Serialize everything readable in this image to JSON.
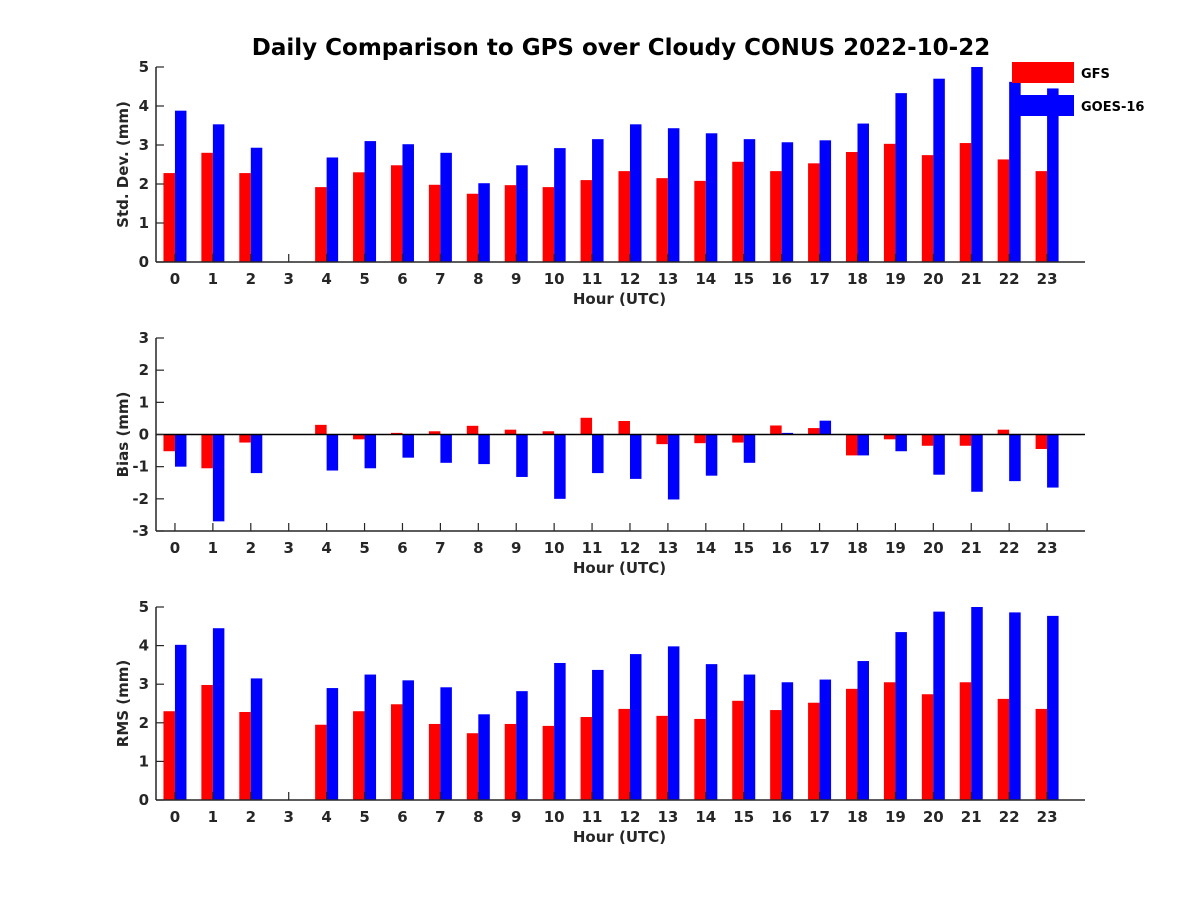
{
  "colors": {
    "GFS": "#ff0000",
    "GOES-16": "#0000ff",
    "axis": "#262626"
  },
  "chart_data": [
    {
      "type": "bar",
      "title": "Daily Comparison to GPS over Cloudy CONUS 2022-10-22",
      "xlabel": "Hour (UTC)",
      "ylabel": "Std. Dev. (mm)",
      "ylim": [
        0,
        5
      ],
      "yticks": [
        "0",
        "1",
        "2",
        "3",
        "4",
        "5"
      ],
      "categories": [
        "0",
        "1",
        "2",
        "3",
        "4",
        "5",
        "6",
        "7",
        "8",
        "9",
        "10",
        "11",
        "12",
        "13",
        "14",
        "15",
        "16",
        "17",
        "18",
        "19",
        "20",
        "21",
        "22",
        "23"
      ],
      "legend": {
        "position": "top-right",
        "entries": [
          "GFS",
          "GOES-16"
        ]
      },
      "series": [
        {
          "name": "GFS",
          "values": [
            2.28,
            2.8,
            2.28,
            null,
            1.92,
            2.3,
            2.48,
            1.98,
            1.75,
            1.97,
            1.92,
            2.1,
            2.33,
            2.15,
            2.08,
            2.57,
            2.33,
            2.53,
            2.82,
            3.03,
            2.74,
            3.05,
            2.63,
            2.33
          ]
        },
        {
          "name": "GOES-16",
          "values": [
            3.88,
            3.53,
            2.93,
            null,
            2.68,
            3.1,
            3.02,
            2.8,
            2.02,
            2.48,
            2.92,
            3.15,
            3.53,
            3.43,
            3.3,
            3.15,
            3.07,
            3.12,
            3.55,
            4.33,
            4.7,
            5.0,
            4.62,
            4.45
          ]
        }
      ]
    },
    {
      "type": "bar",
      "xlabel": "Hour (UTC)",
      "ylabel": "Bias (mm)",
      "ylim": [
        -3,
        3
      ],
      "yticks": [
        "-3",
        "-2",
        "-1",
        "0",
        "1",
        "2",
        "3"
      ],
      "categories": [
        "0",
        "1",
        "2",
        "3",
        "4",
        "5",
        "6",
        "7",
        "8",
        "9",
        "10",
        "11",
        "12",
        "13",
        "14",
        "15",
        "16",
        "17",
        "18",
        "19",
        "20",
        "21",
        "22",
        "23"
      ],
      "series": [
        {
          "name": "GFS",
          "values": [
            -0.52,
            -1.05,
            -0.25,
            null,
            0.3,
            -0.15,
            0.05,
            0.1,
            0.27,
            0.15,
            0.1,
            0.52,
            0.42,
            -0.3,
            -0.27,
            -0.25,
            0.28,
            0.2,
            -0.65,
            -0.15,
            -0.35,
            -0.35,
            0.15,
            -0.45
          ]
        },
        {
          "name": "GOES-16",
          "values": [
            -1.0,
            -2.7,
            -1.2,
            null,
            -1.12,
            -1.05,
            -0.72,
            -0.88,
            -0.92,
            -1.32,
            -2.0,
            -1.2,
            -1.38,
            -2.02,
            -1.28,
            -0.88,
            0.05,
            0.43,
            -0.65,
            -0.52,
            -1.25,
            -1.78,
            -1.45,
            -1.65
          ]
        }
      ]
    },
    {
      "type": "bar",
      "xlabel": "Hour (UTC)",
      "ylabel": "RMS (mm)",
      "ylim": [
        0,
        5
      ],
      "yticks": [
        "0",
        "1",
        "2",
        "3",
        "4",
        "5"
      ],
      "categories": [
        "0",
        "1",
        "2",
        "3",
        "4",
        "5",
        "6",
        "7",
        "8",
        "9",
        "10",
        "11",
        "12",
        "13",
        "14",
        "15",
        "16",
        "17",
        "18",
        "19",
        "20",
        "21",
        "22",
        "23"
      ],
      "series": [
        {
          "name": "GFS",
          "values": [
            2.3,
            2.98,
            2.28,
            null,
            1.95,
            2.3,
            2.48,
            1.97,
            1.73,
            1.97,
            1.92,
            2.15,
            2.36,
            2.18,
            2.1,
            2.57,
            2.33,
            2.52,
            2.88,
            3.05,
            2.74,
            3.05,
            2.62,
            2.36
          ]
        },
        {
          "name": "GOES-16",
          "values": [
            4.02,
            4.45,
            3.15,
            null,
            2.9,
            3.25,
            3.1,
            2.92,
            2.22,
            2.82,
            3.55,
            3.37,
            3.78,
            3.98,
            3.52,
            3.25,
            3.05,
            3.12,
            3.6,
            4.35,
            4.88,
            5.0,
            4.86,
            4.77
          ]
        }
      ]
    }
  ]
}
